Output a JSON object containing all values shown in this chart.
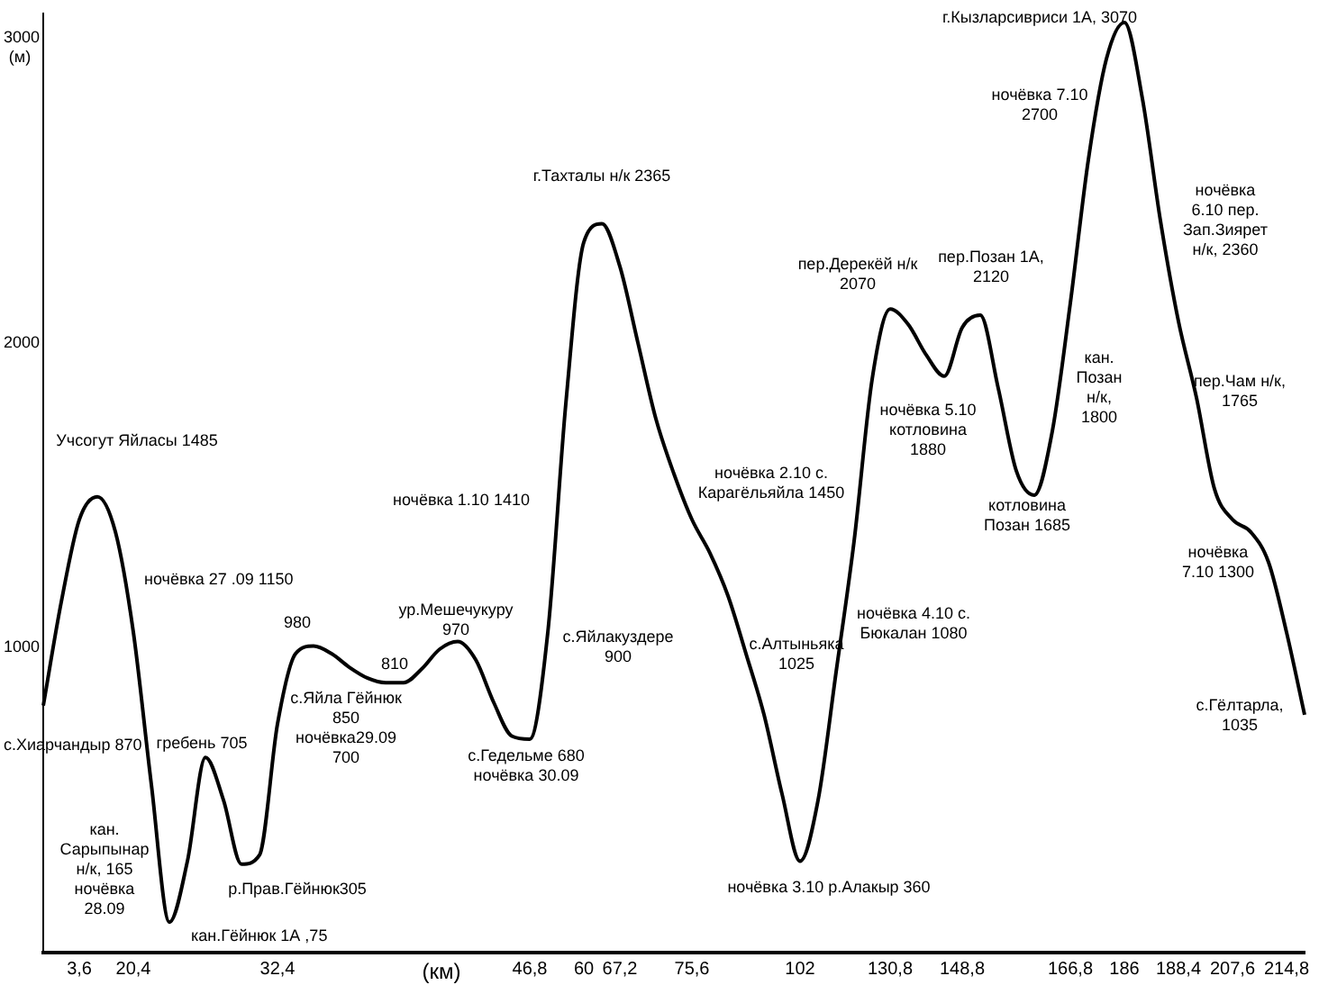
{
  "chart_data": {
    "type": "line",
    "xlabel": "(км)",
    "ylabel": "(м)",
    "color": "#000000",
    "marker": "none",
    "line_style": "solid",
    "ylim": [
      0,
      3080
    ],
    "yticks": [
      1000,
      2000,
      3000
    ],
    "categories": [
      null,
      null,
      "3,6",
      null,
      null,
      "20,4",
      null,
      null,
      null,
      null,
      null,
      null,
      null,
      "32,4",
      null,
      null,
      null,
      null,
      null,
      null,
      null,
      null,
      null,
      null,
      null,
      null,
      null,
      "46,8",
      null,
      null,
      "60",
      null,
      "67,2",
      null,
      null,
      null,
      "75,6",
      null,
      null,
      null,
      null,
      null,
      "102",
      null,
      null,
      null,
      null,
      "130,8",
      null,
      null,
      null,
      "148,8",
      null,
      null,
      null,
      null,
      null,
      "166,8",
      null,
      null,
      "186",
      null,
      null,
      "188,4",
      null,
      null,
      "207,6",
      null,
      null,
      "214,8",
      null
    ],
    "values": [
      810,
      1150,
      1420,
      1495,
      1380,
      1050,
      550,
      100,
      300,
      640,
      500,
      290,
      320,
      750,
      980,
      1005,
      980,
      935,
      900,
      885,
      885,
      930,
      995,
      1020,
      960,
      820,
      710,
      700,
      1050,
      1800,
      2330,
      2390,
      2250,
      2000,
      1750,
      1570,
      1420,
      1310,
      1170,
      980,
      780,
      520,
      300,
      500,
      920,
      1350,
      1880,
      2110,
      2060,
      1960,
      1890,
      2050,
      2090,
      1850,
      1580,
      1500,
      1710,
      2130,
      2600,
      2930,
      3050,
      2800,
      2400,
      2070,
      1820,
      1520,
      1420,
      1380,
      1280,
      1050,
      780
    ],
    "annotations": [
      "Учсогут Яйласы 1485",
      "ночёвка 27 .09 1150",
      "с.Хиарчандыр 870",
      "кан.\nСарыпынар\nн/к, 165\nночёвка\n28.09",
      "кан.Гёйнюк 1А ,75",
      "гребень 705",
      "р.Прав.Гёйнюк305",
      "980",
      "с.Яйла Гёйнюк\n850",
      "ночёвка29.09\n700",
      "810",
      "ур.Мешечукуру\n970",
      "с.Гедельме 680\nночёвка 30.09",
      "ночёвка 1.10 1410",
      "г.Тахталы н/к 2365",
      "с.Яйлакуздере\n900",
      "ночёвка 2.10 с.\nКарагёльяйла 1450",
      "с.Алтыньяка\n1025",
      "ночёвка 3.10 р.Алакыр 360",
      "ночёвка 4.10 с.\nБюкалан 1080",
      "пер.Дерекёй н/к\n2070",
      "ночёвка 5.10\nкотловина\n1880",
      "пер.Позан 1А,\n2120",
      "котловина\nПозан 1685",
      "кан.\nПозан\nн/к,\n1800",
      "г.Кызларсивриси 1А, 3070",
      "ночёвка 7.10\n2700",
      "ночёвка\n6.10 пер.\nЗап.Зиярет\nн/к, 2360",
      "пер.Чам н/к,\n1765",
      "ночёвка\n7.10 1300",
      "с.Гёлтарла,\n1035"
    ]
  }
}
